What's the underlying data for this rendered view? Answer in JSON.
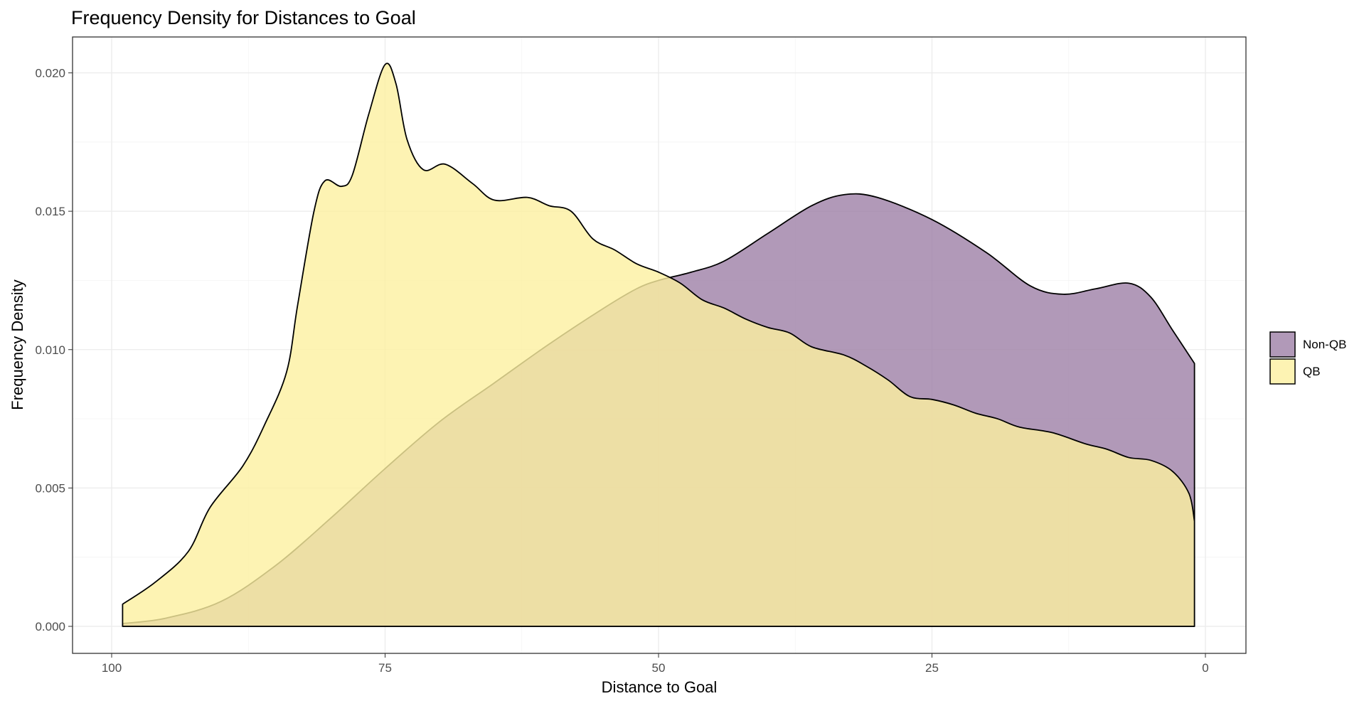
{
  "chart_data": {
    "type": "area",
    "title": "Frequency Density for Distances to Goal",
    "xlabel": "Distance to Goal",
    "ylabel": "Frequency Density",
    "xlim": [
      100,
      0
    ],
    "x_reversed": true,
    "ylim": [
      0,
      0.0215
    ],
    "x_ticks": [
      100,
      75,
      50,
      25,
      0
    ],
    "x_tick_labels": [
      "100",
      "75",
      "50",
      "25",
      "0"
    ],
    "y_ticks": [
      0,
      0.005,
      0.01,
      0.015,
      0.02
    ],
    "y_tick_labels": [
      "0.000",
      "0.005",
      "0.010",
      "0.015",
      "0.020"
    ],
    "grid": true,
    "legend_position": "right",
    "legend": [
      "Non-QB",
      "QB"
    ],
    "series": [
      {
        "name": "Non-QB",
        "fill": "#9e7fa6",
        "points": [
          [
            99,
            0.0001
          ],
          [
            95,
            0.0003
          ],
          [
            90,
            0.0009
          ],
          [
            85,
            0.0022
          ],
          [
            80,
            0.0039
          ],
          [
            75,
            0.0057
          ],
          [
            70,
            0.0074
          ],
          [
            65,
            0.0088
          ],
          [
            60,
            0.0102
          ],
          [
            55,
            0.0115
          ],
          [
            52,
            0.0122
          ],
          [
            50,
            0.0125
          ],
          [
            47,
            0.0128
          ],
          [
            44,
            0.0132
          ],
          [
            40,
            0.0142
          ],
          [
            36,
            0.0152
          ],
          [
            33,
            0.0156
          ],
          [
            30,
            0.0155
          ],
          [
            25,
            0.0147
          ],
          [
            20,
            0.0135
          ],
          [
            16,
            0.0123
          ],
          [
            13,
            0.012
          ],
          [
            10,
            0.0122
          ],
          [
            7,
            0.0124
          ],
          [
            5,
            0.0119
          ],
          [
            3,
            0.0107
          ],
          [
            1,
            0.0095
          ]
        ]
      },
      {
        "name": "QB",
        "fill": "#fdf0a0",
        "points": [
          [
            99,
            0.0008
          ],
          [
            96,
            0.0016
          ],
          [
            93,
            0.0027
          ],
          [
            91,
            0.0043
          ],
          [
            88,
            0.0058
          ],
          [
            86,
            0.0073
          ],
          [
            84,
            0.0092
          ],
          [
            83,
            0.0116
          ],
          [
            81.5,
            0.015
          ],
          [
            80.5,
            0.0161
          ],
          [
            79,
            0.0159
          ],
          [
            78,
            0.0163
          ],
          [
            76.5,
            0.0185
          ],
          [
            75,
            0.0203
          ],
          [
            74,
            0.0196
          ],
          [
            73,
            0.0176
          ],
          [
            71.5,
            0.0165
          ],
          [
            69.5,
            0.0167
          ],
          [
            67,
            0.016
          ],
          [
            65,
            0.0154
          ],
          [
            62,
            0.0155
          ],
          [
            60,
            0.0152
          ],
          [
            58,
            0.015
          ],
          [
            56,
            0.014
          ],
          [
            54,
            0.0136
          ],
          [
            52,
            0.0131
          ],
          [
            50,
            0.0128
          ],
          [
            48,
            0.0124
          ],
          [
            46,
            0.0118
          ],
          [
            44,
            0.0115
          ],
          [
            42,
            0.0111
          ],
          [
            40,
            0.0108
          ],
          [
            38,
            0.0106
          ],
          [
            36,
            0.0101
          ],
          [
            33,
            0.0098
          ],
          [
            31,
            0.0094
          ],
          [
            29,
            0.0089
          ],
          [
            27,
            0.0083
          ],
          [
            25,
            0.0082
          ],
          [
            23,
            0.008
          ],
          [
            21,
            0.0077
          ],
          [
            19,
            0.0075
          ],
          [
            17,
            0.0072
          ],
          [
            14,
            0.007
          ],
          [
            11,
            0.0066
          ],
          [
            9,
            0.0064
          ],
          [
            7,
            0.0061
          ],
          [
            5,
            0.006
          ],
          [
            3,
            0.0056
          ],
          [
            1.5,
            0.0048
          ],
          [
            1,
            0.0038
          ]
        ]
      }
    ]
  }
}
